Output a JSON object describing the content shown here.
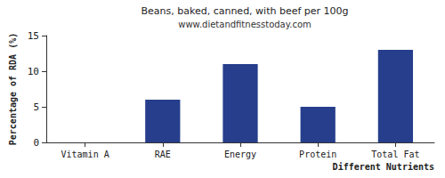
{
  "chart_data": {
    "type": "bar",
    "title": "Beans, baked, canned, with beef per 100g",
    "subtitle": "www.dietandfitnesstoday.com",
    "x_label": "Different Nutrients",
    "y_label": "Percentage of RDA (%)",
    "categories": [
      "Vitamin A",
      "RAE",
      "Energy",
      "Protein",
      "Total Fat"
    ],
    "values": [
      0,
      6,
      11,
      5,
      13
    ],
    "color": "#263e8c",
    "ylim": [
      0,
      15
    ],
    "yticks": [
      0,
      5,
      10,
      15
    ],
    "grid": false
  }
}
